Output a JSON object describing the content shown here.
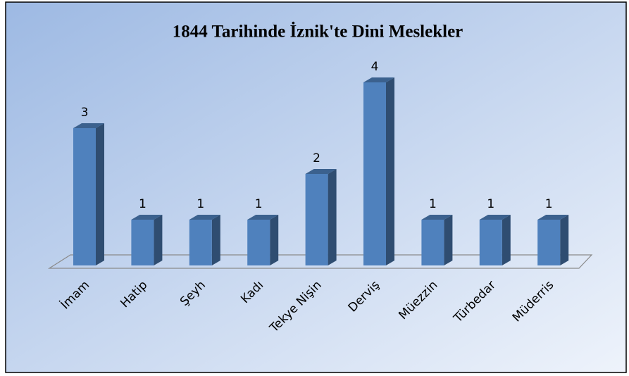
{
  "chart_data": {
    "type": "bar3d",
    "title": "1844 Tarihinde İznik'te Dini Meslekler",
    "categories": [
      "İmam",
      "Hatip",
      "Şeyh",
      "Kadı",
      "Tekye Nişin",
      "Derviş",
      "Müezzin",
      "Türbedar",
      "Müderris"
    ],
    "values": [
      3,
      1,
      1,
      1,
      2,
      4,
      1,
      1,
      1
    ],
    "color": "#4f81bd"
  }
}
